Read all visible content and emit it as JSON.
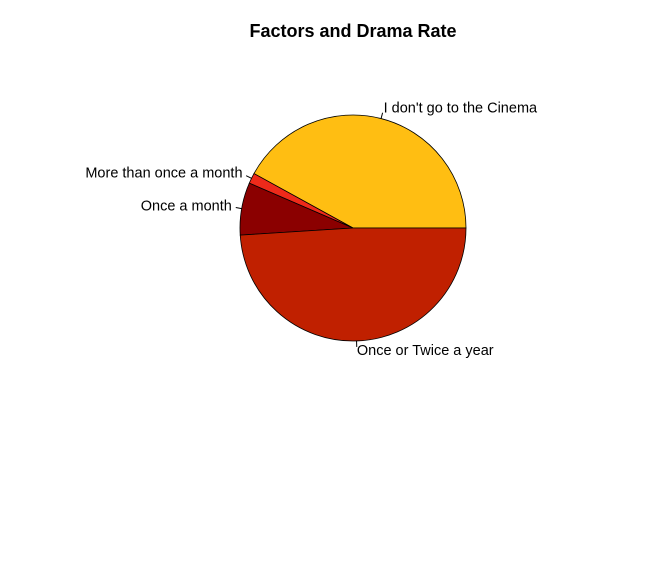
{
  "chart_data": {
    "type": "pie",
    "title": "Factors and Drama Rate",
    "slices": [
      {
        "label": "I don't go to the Cinema",
        "value": 42,
        "color": "#FFBE12"
      },
      {
        "label": "More than once a month",
        "value": 1.5,
        "color": "#EE2A1A"
      },
      {
        "label": "Once a month",
        "value": 7.5,
        "color": "#8B0000"
      },
      {
        "label": "Once or Twice a year",
        "value": 49,
        "color": "#C02000"
      }
    ],
    "start_angle_deg": 0,
    "direction": "counterclockwise",
    "legend": "none"
  }
}
